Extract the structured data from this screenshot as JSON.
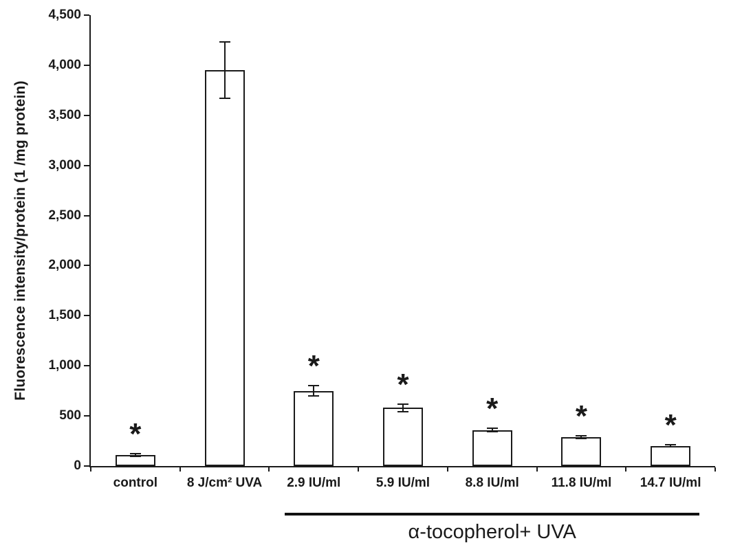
{
  "chart_data": {
    "type": "bar",
    "title": "",
    "ylabel": "Fluorescence intensity/protein (1 /mg protein)",
    "xlabel": "",
    "ylim": [
      0,
      4500
    ],
    "ytick_interval": 500,
    "ytick_labels": [
      "0",
      "500",
      "1,000",
      "1,500",
      "2,000",
      "2,500",
      "3,000",
      "3,500",
      "4,000",
      "4,500"
    ],
    "categories": [
      "control",
      "8 J/cm² UVA",
      "2.9 IU/ml",
      "5.9 IU/ml",
      "8.8 IU/ml",
      "11.8 IU/ml",
      "14.7 IU/ml"
    ],
    "values": [
      110,
      3950,
      750,
      580,
      360,
      290,
      200
    ],
    "error_bars": [
      15,
      280,
      50,
      35,
      20,
      15,
      10
    ],
    "significance_markers": [
      "*",
      "",
      "*",
      "*",
      "*",
      "*",
      "*"
    ],
    "group_annotation": {
      "label": "α-tocopherol+ UVA",
      "start_category": "2.9 IU/ml",
      "end_category": "14.7 IU/ml",
      "start_index": 2,
      "end_index": 6
    },
    "grid": false,
    "legend": false,
    "bar_fill": "#ffffff",
    "bar_border": "#1a1a1a",
    "axis_color": "#1a1a1a"
  }
}
